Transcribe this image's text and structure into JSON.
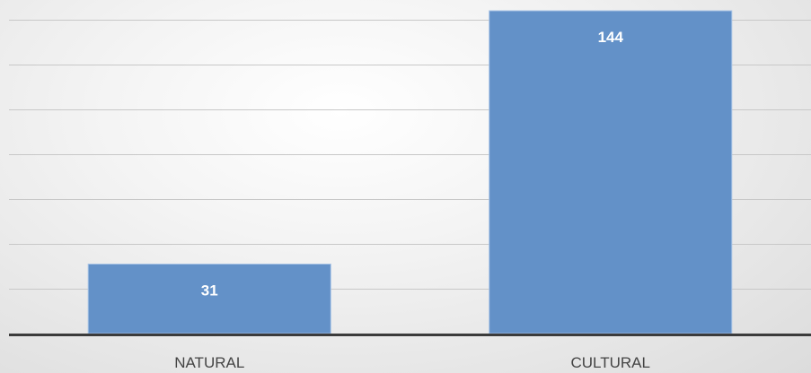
{
  "chart_data": {
    "type": "bar",
    "categories": [
      "NATURAL",
      "CULTURAL"
    ],
    "values": [
      31,
      144
    ],
    "data_labels": [
      "31",
      "144"
    ],
    "ylim": [
      0,
      160
    ],
    "y_gridline_step": 20,
    "grid": true,
    "legend": "none",
    "colors": {
      "bar_fill": "#6391c8",
      "bar_stroke": "#a9c4e6",
      "gridline": "#c8c8c8",
      "axis": "#3b3b3b",
      "label": "#ffffff",
      "tick_text": "#444444"
    }
  }
}
